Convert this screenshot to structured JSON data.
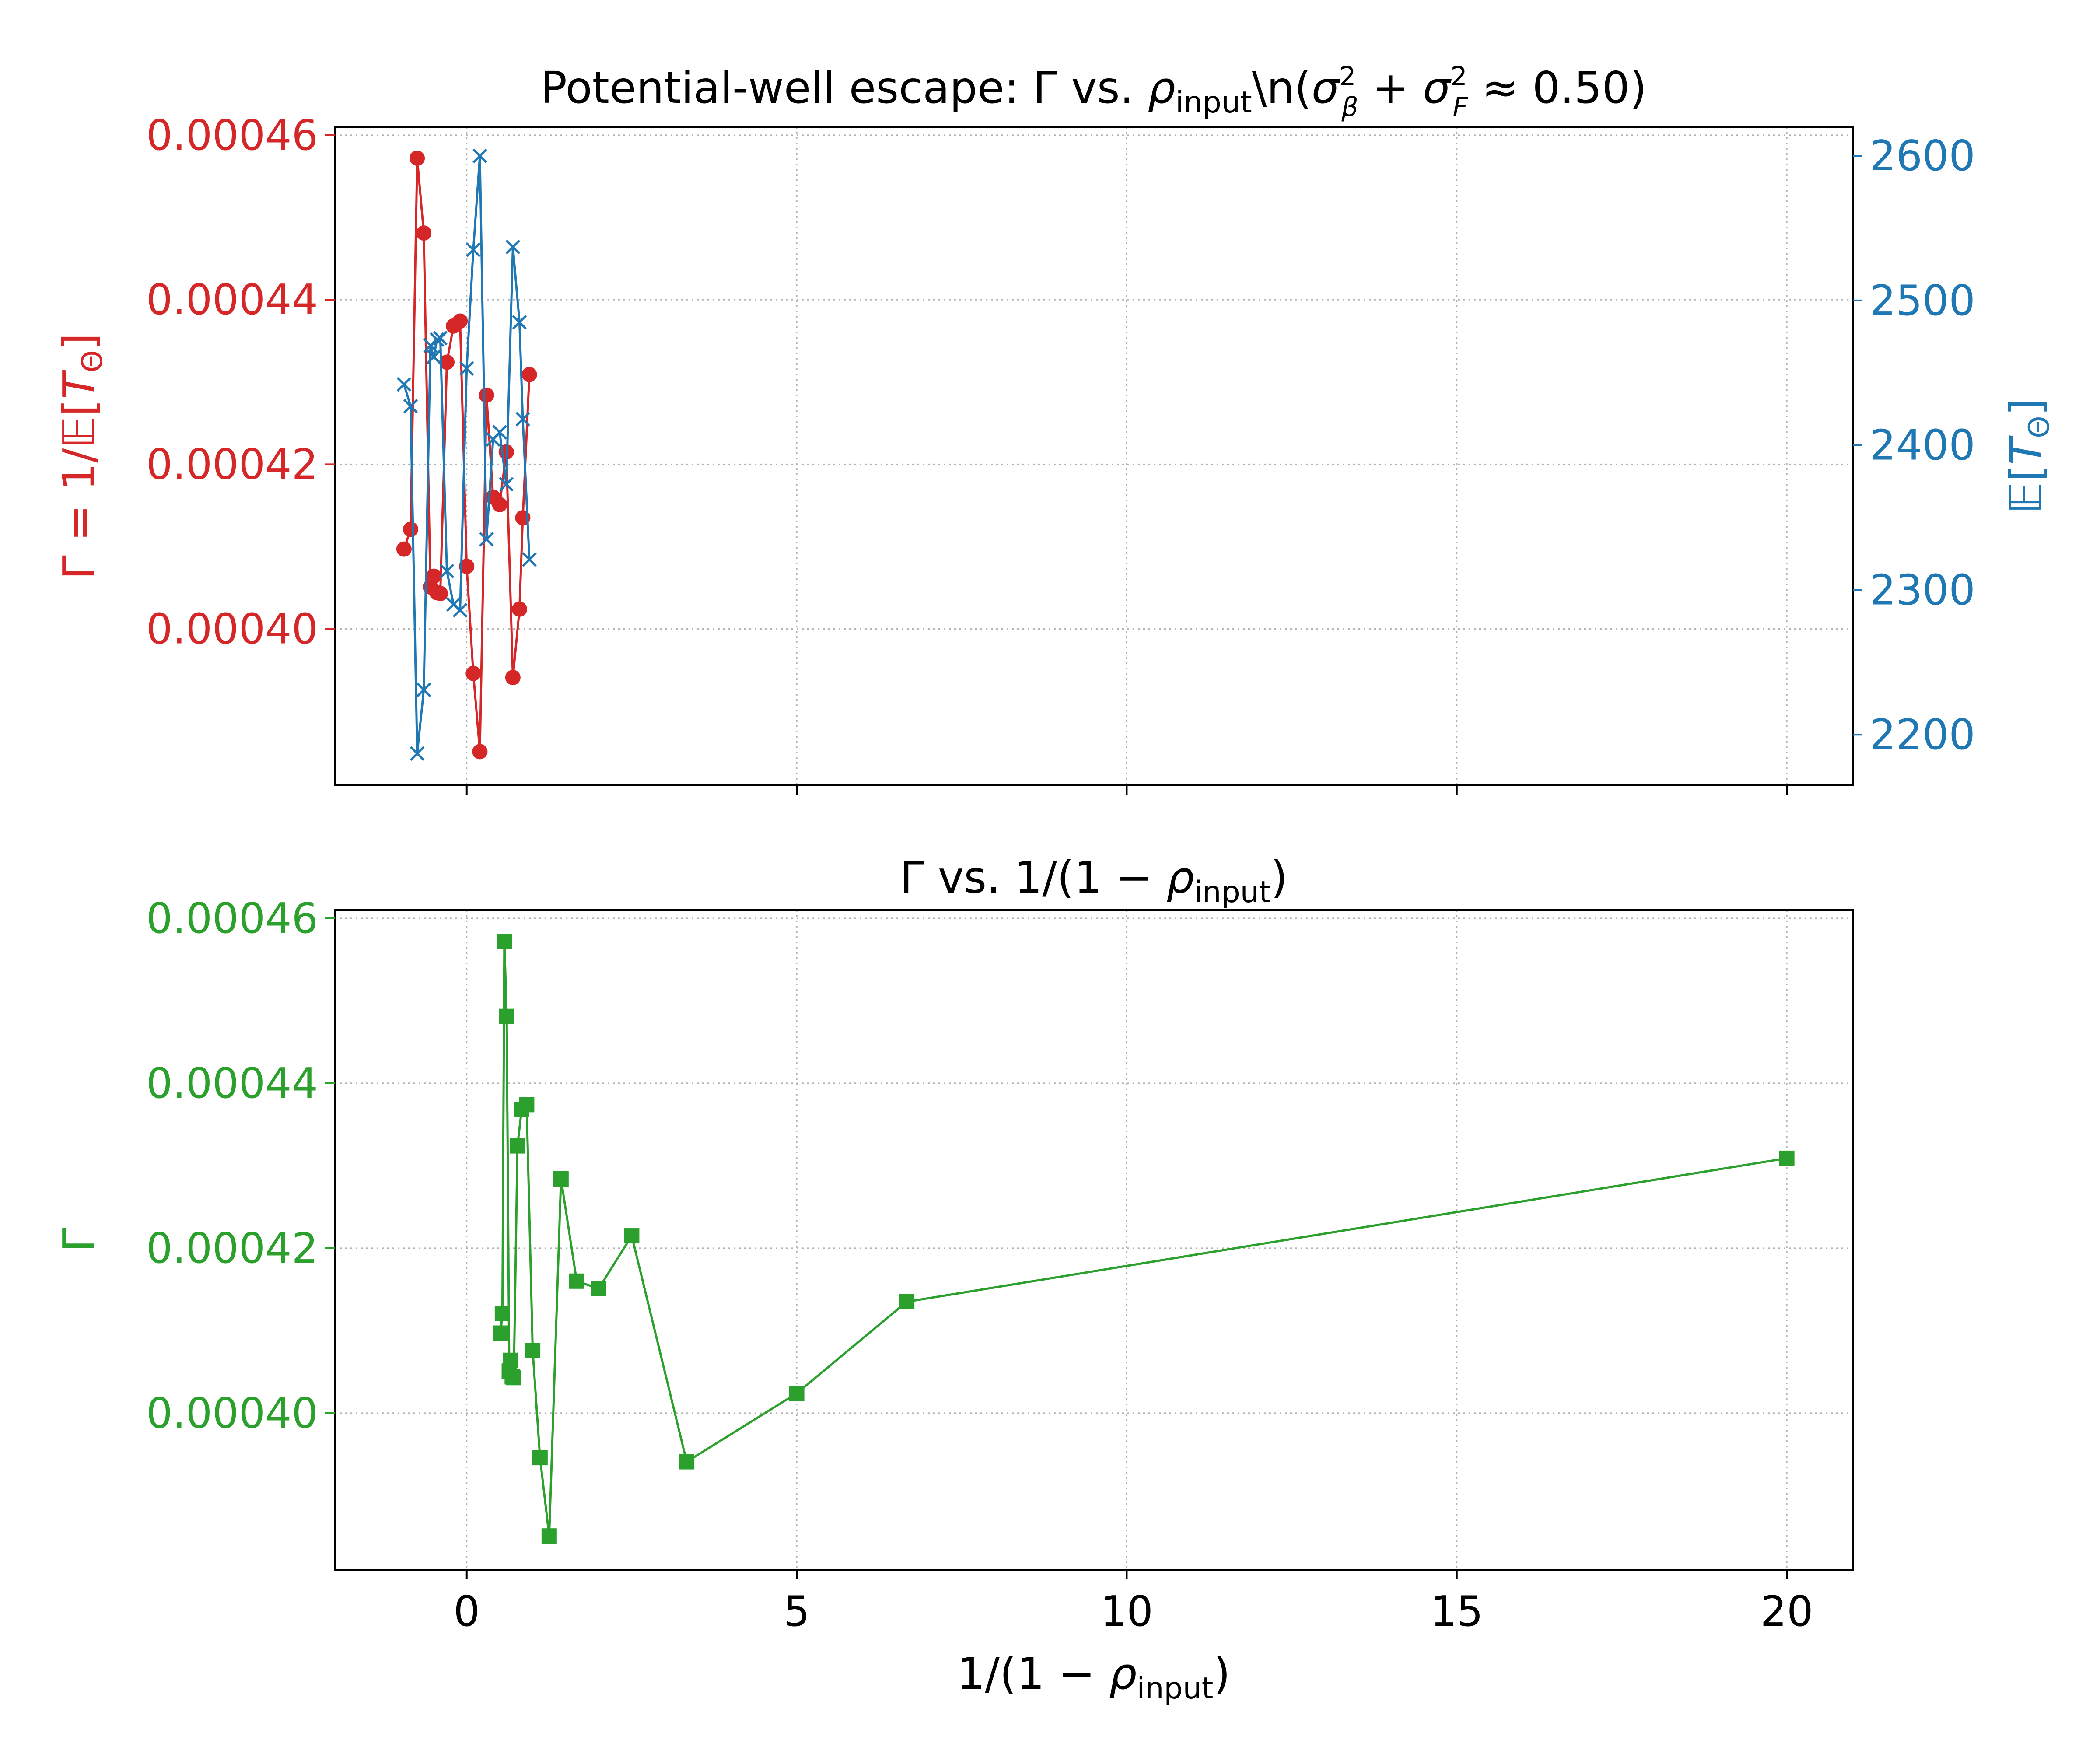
{
  "colors": {
    "gamma": "#d62728",
    "et": "#1f77b4",
    "inv": "#2ca02c",
    "grid": "#b0b0b0",
    "axis": "#000000"
  },
  "chart_data": [
    {
      "type": "line",
      "title": "Potential-well escape: Γ vs. ρ_input\\n(σ_β² + σ_F² ≈ 0.50)",
      "xlabel": "",
      "xlim": [
        -2,
        21
      ],
      "xticks": [
        0,
        5,
        10,
        15,
        20
      ],
      "grid": true,
      "y_left": {
        "label": "Γ = 1/𝔼[T_Θ]",
        "ylim": [
          0.000381,
          0.000461
        ],
        "ticks": [
          "0.00040",
          "0.00042",
          "0.00044",
          "0.00046"
        ],
        "tick_values": [
          0.0004,
          0.00042,
          0.00044,
          0.00046
        ]
      },
      "y_right": {
        "label": "𝔼[T_Θ]",
        "ylim": [
          2165,
          2620
        ],
        "ticks": [
          "2200",
          "2300",
          "2400",
          "2500",
          "2600"
        ],
        "tick_values": [
          2200,
          2300,
          2400,
          2500,
          2600
        ]
      },
      "series": [
        {
          "axis": "left",
          "marker": "circle",
          "x": [
            -0.95,
            -0.85,
            -0.75,
            -0.65,
            -0.55,
            -0.5,
            -0.45,
            -0.4,
            -0.3,
            -0.2,
            -0.1,
            0.0,
            0.1,
            0.2,
            0.3,
            0.4,
            0.5,
            0.6,
            0.7,
            0.8,
            0.85,
            0.95
          ],
          "y": [
            0.0004097,
            0.0004121,
            0.0004572,
            0.0004481,
            0.0004051,
            0.0004064,
            0.0004044,
            0.0004043,
            0.0004324,
            0.0004368,
            0.0004374,
            0.0004076,
            0.0003946,
            0.0003851,
            0.0004284,
            0.000416,
            0.0004151,
            0.0004215,
            0.0003941,
            0.0004024,
            0.0004135,
            0.0004309
          ]
        },
        {
          "axis": "right",
          "marker": "x",
          "x": [
            -0.95,
            -0.85,
            -0.75,
            -0.65,
            -0.55,
            -0.5,
            -0.45,
            -0.4,
            -0.3,
            -0.2,
            -0.1,
            0.0,
            0.1,
            0.2,
            0.3,
            0.4,
            0.5,
            0.6,
            0.7,
            0.8,
            0.85,
            0.95
          ],
          "y": [
            2442,
            2427,
            2187,
            2231,
            2469,
            2461,
            2473,
            2474,
            2313,
            2290,
            2286,
            2453,
            2535,
            2600,
            2335,
            2404,
            2409,
            2373,
            2537,
            2485,
            2418,
            2321
          ]
        }
      ]
    },
    {
      "type": "line",
      "title": "Γ vs. 1/(1 − ρ_input)",
      "xlabel": "1/(1 − ρ_input)",
      "ylabel": "Γ",
      "xlim": [
        -2,
        21
      ],
      "xticks": [
        "0",
        "5",
        "10",
        "15",
        "20"
      ],
      "xtick_values": [
        0,
        5,
        10,
        15,
        20
      ],
      "ylim": [
        0.000381,
        0.000461
      ],
      "yticks": [
        "0.00040",
        "0.00042",
        "0.00044",
        "0.00046"
      ],
      "ytick_values": [
        0.0004,
        0.00042,
        0.00044,
        0.00046
      ],
      "grid": true,
      "series": [
        {
          "marker": "square",
          "x": [
            0.513,
            0.541,
            0.571,
            0.606,
            0.645,
            0.667,
            0.69,
            0.714,
            0.769,
            0.833,
            0.909,
            1.0,
            1.111,
            1.25,
            1.429,
            1.667,
            2.0,
            2.5,
            3.333,
            5.0,
            6.667,
            20.0
          ],
          "y": [
            0.0004097,
            0.0004121,
            0.0004572,
            0.0004481,
            0.0004051,
            0.0004064,
            0.0004044,
            0.0004043,
            0.0004324,
            0.0004368,
            0.0004374,
            0.0004076,
            0.0003946,
            0.0003851,
            0.0004284,
            0.000416,
            0.0004151,
            0.0004215,
            0.0003941,
            0.0004024,
            0.0004135,
            0.0004309
          ]
        }
      ]
    }
  ]
}
